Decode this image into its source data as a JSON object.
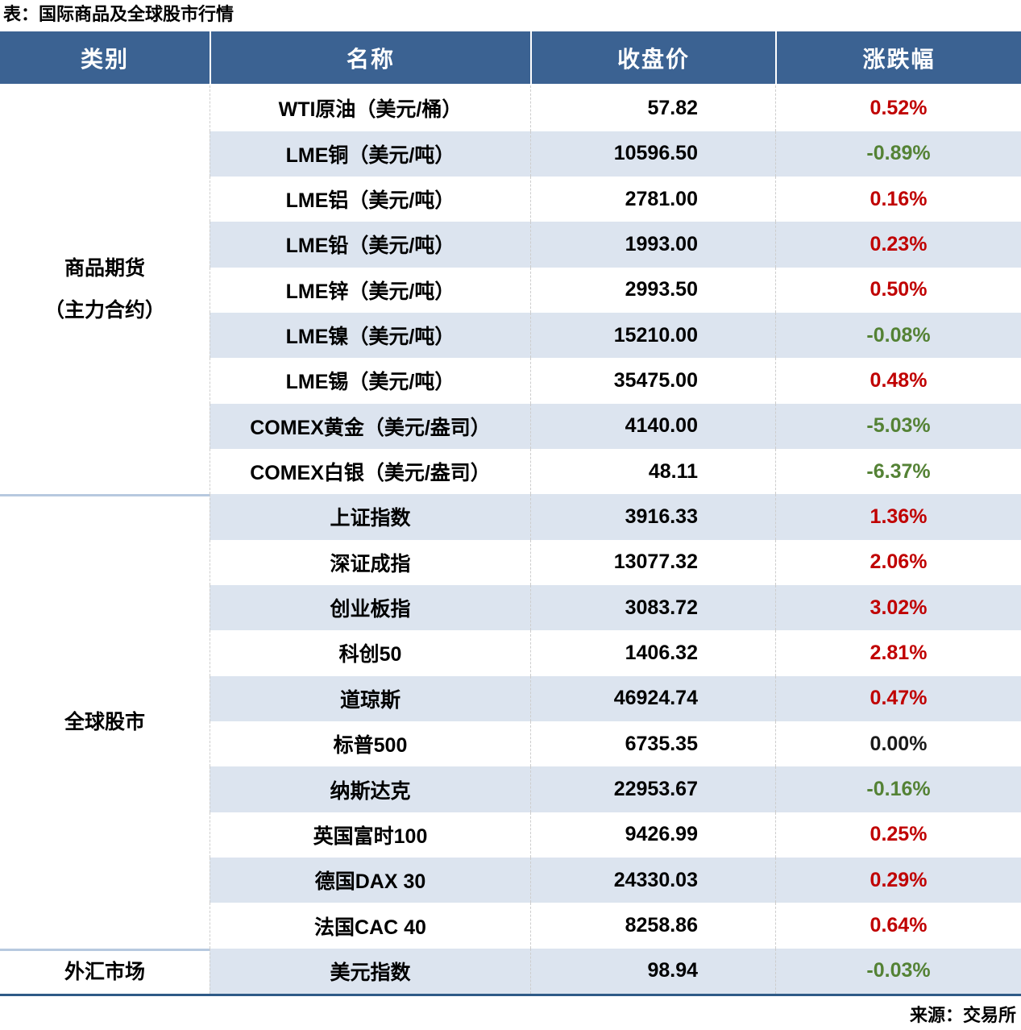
{
  "title": "表：国际商品及全球股市行情",
  "source": "来源：交易所",
  "colors": {
    "header_bg": "#3B6292",
    "header_text": "#FFFFFF",
    "row_alt_bg": "#DCE4EF",
    "up_red": "#C00000",
    "down_green": "#548235",
    "flat_black": "#1A1A1A",
    "bottom_border": "#2E5A87",
    "section_divider": "#B7C9DF"
  },
  "table": {
    "headers": [
      "类别",
      "名称",
      "收盘价",
      "涨跌幅"
    ],
    "sections": [
      {
        "category": "商品期货\n（主力合约）",
        "rows": [
          {
            "name": "WTI原油（美元/桶）",
            "close": "57.82",
            "change": "0.52%",
            "dir": "up"
          },
          {
            "name": "LME铜（美元/吨）",
            "close": "10596.50",
            "change": "-0.89%",
            "dir": "down"
          },
          {
            "name": "LME铝（美元/吨）",
            "close": "2781.00",
            "change": "0.16%",
            "dir": "up"
          },
          {
            "name": "LME铅（美元/吨）",
            "close": "1993.00",
            "change": "0.23%",
            "dir": "up"
          },
          {
            "name": "LME锌（美元/吨）",
            "close": "2993.50",
            "change": "0.50%",
            "dir": "up"
          },
          {
            "name": "LME镍（美元/吨）",
            "close": "15210.00",
            "change": "-0.08%",
            "dir": "down"
          },
          {
            "name": "LME锡（美元/吨）",
            "close": "35475.00",
            "change": "0.48%",
            "dir": "up"
          },
          {
            "name": "COMEX黄金（美元/盎司）",
            "close": "4140.00",
            "change": "-5.03%",
            "dir": "down"
          },
          {
            "name": "COMEX白银（美元/盎司）",
            "close": "48.11",
            "change": "-6.37%",
            "dir": "down"
          }
        ]
      },
      {
        "category": "全球股市",
        "rows": [
          {
            "name": "上证指数",
            "close": "3916.33",
            "change": "1.36%",
            "dir": "up"
          },
          {
            "name": "深证成指",
            "close": "13077.32",
            "change": "2.06%",
            "dir": "up"
          },
          {
            "name": "创业板指",
            "close": "3083.72",
            "change": "3.02%",
            "dir": "up"
          },
          {
            "name": "科创50",
            "close": "1406.32",
            "change": "2.81%",
            "dir": "up"
          },
          {
            "name": "道琼斯",
            "close": "46924.74",
            "change": "0.47%",
            "dir": "up"
          },
          {
            "name": "标普500",
            "close": "6735.35",
            "change": "0.00%",
            "dir": "flat"
          },
          {
            "name": "纳斯达克",
            "close": "22953.67",
            "change": "-0.16%",
            "dir": "down"
          },
          {
            "name": "英国富时100",
            "close": "9426.99",
            "change": "0.25%",
            "dir": "up"
          },
          {
            "name": "德国DAX 30",
            "close": "24330.03",
            "change": "0.29%",
            "dir": "up"
          },
          {
            "name": "法国CAC 40",
            "close": "8258.86",
            "change": "0.64%",
            "dir": "up"
          }
        ]
      },
      {
        "category": "外汇市场",
        "rows": [
          {
            "name": "美元指数",
            "close": "98.94",
            "change": "-0.03%",
            "dir": "down"
          }
        ]
      }
    ]
  },
  "chart_data": {
    "type": "table",
    "title": "表：国际商品及全球股市行情",
    "columns": [
      "类别",
      "名称",
      "收盘价",
      "涨跌幅"
    ],
    "rows": [
      [
        "商品期货（主力合约）",
        "WTI原油（美元/桶）",
        57.82,
        "0.52%"
      ],
      [
        "商品期货（主力合约）",
        "LME铜（美元/吨）",
        10596.5,
        "-0.89%"
      ],
      [
        "商品期货（主力合约）",
        "LME铝（美元/吨）",
        2781.0,
        "0.16%"
      ],
      [
        "商品期货（主力合约）",
        "LME铅（美元/吨）",
        1993.0,
        "0.23%"
      ],
      [
        "商品期货（主力合约）",
        "LME锌（美元/吨）",
        2993.5,
        "0.50%"
      ],
      [
        "商品期货（主力合约）",
        "LME镍（美元/吨）",
        15210.0,
        "-0.08%"
      ],
      [
        "商品期货（主力合约）",
        "LME锡（美元/吨）",
        35475.0,
        "0.48%"
      ],
      [
        "商品期货（主力合约）",
        "COMEX黄金（美元/盎司）",
        4140.0,
        "-5.03%"
      ],
      [
        "商品期货（主力合约）",
        "COMEX白银（美元/盎司）",
        48.11,
        "-6.37%"
      ],
      [
        "全球股市",
        "上证指数",
        3916.33,
        "1.36%"
      ],
      [
        "全球股市",
        "深证成指",
        13077.32,
        "2.06%"
      ],
      [
        "全球股市",
        "创业板指",
        3083.72,
        "3.02%"
      ],
      [
        "全球股市",
        "科创50",
        1406.32,
        "2.81%"
      ],
      [
        "全球股市",
        "道琼斯",
        46924.74,
        "0.47%"
      ],
      [
        "全球股市",
        "标普500",
        6735.35,
        "0.00%"
      ],
      [
        "全球股市",
        "纳斯达克",
        22953.67,
        "-0.16%"
      ],
      [
        "全球股市",
        "英国富时100",
        9426.99,
        "0.25%"
      ],
      [
        "全球股市",
        "德国DAX 30",
        24330.03,
        "0.29%"
      ],
      [
        "全球股市",
        "法国CAC 40",
        8258.86,
        "0.64%"
      ],
      [
        "外汇市场",
        "美元指数",
        98.94,
        "-0.03%"
      ]
    ],
    "source": "来源：交易所",
    "color_coding": {
      "positive": "#C00000",
      "negative": "#548235",
      "zero": "#1A1A1A"
    }
  }
}
